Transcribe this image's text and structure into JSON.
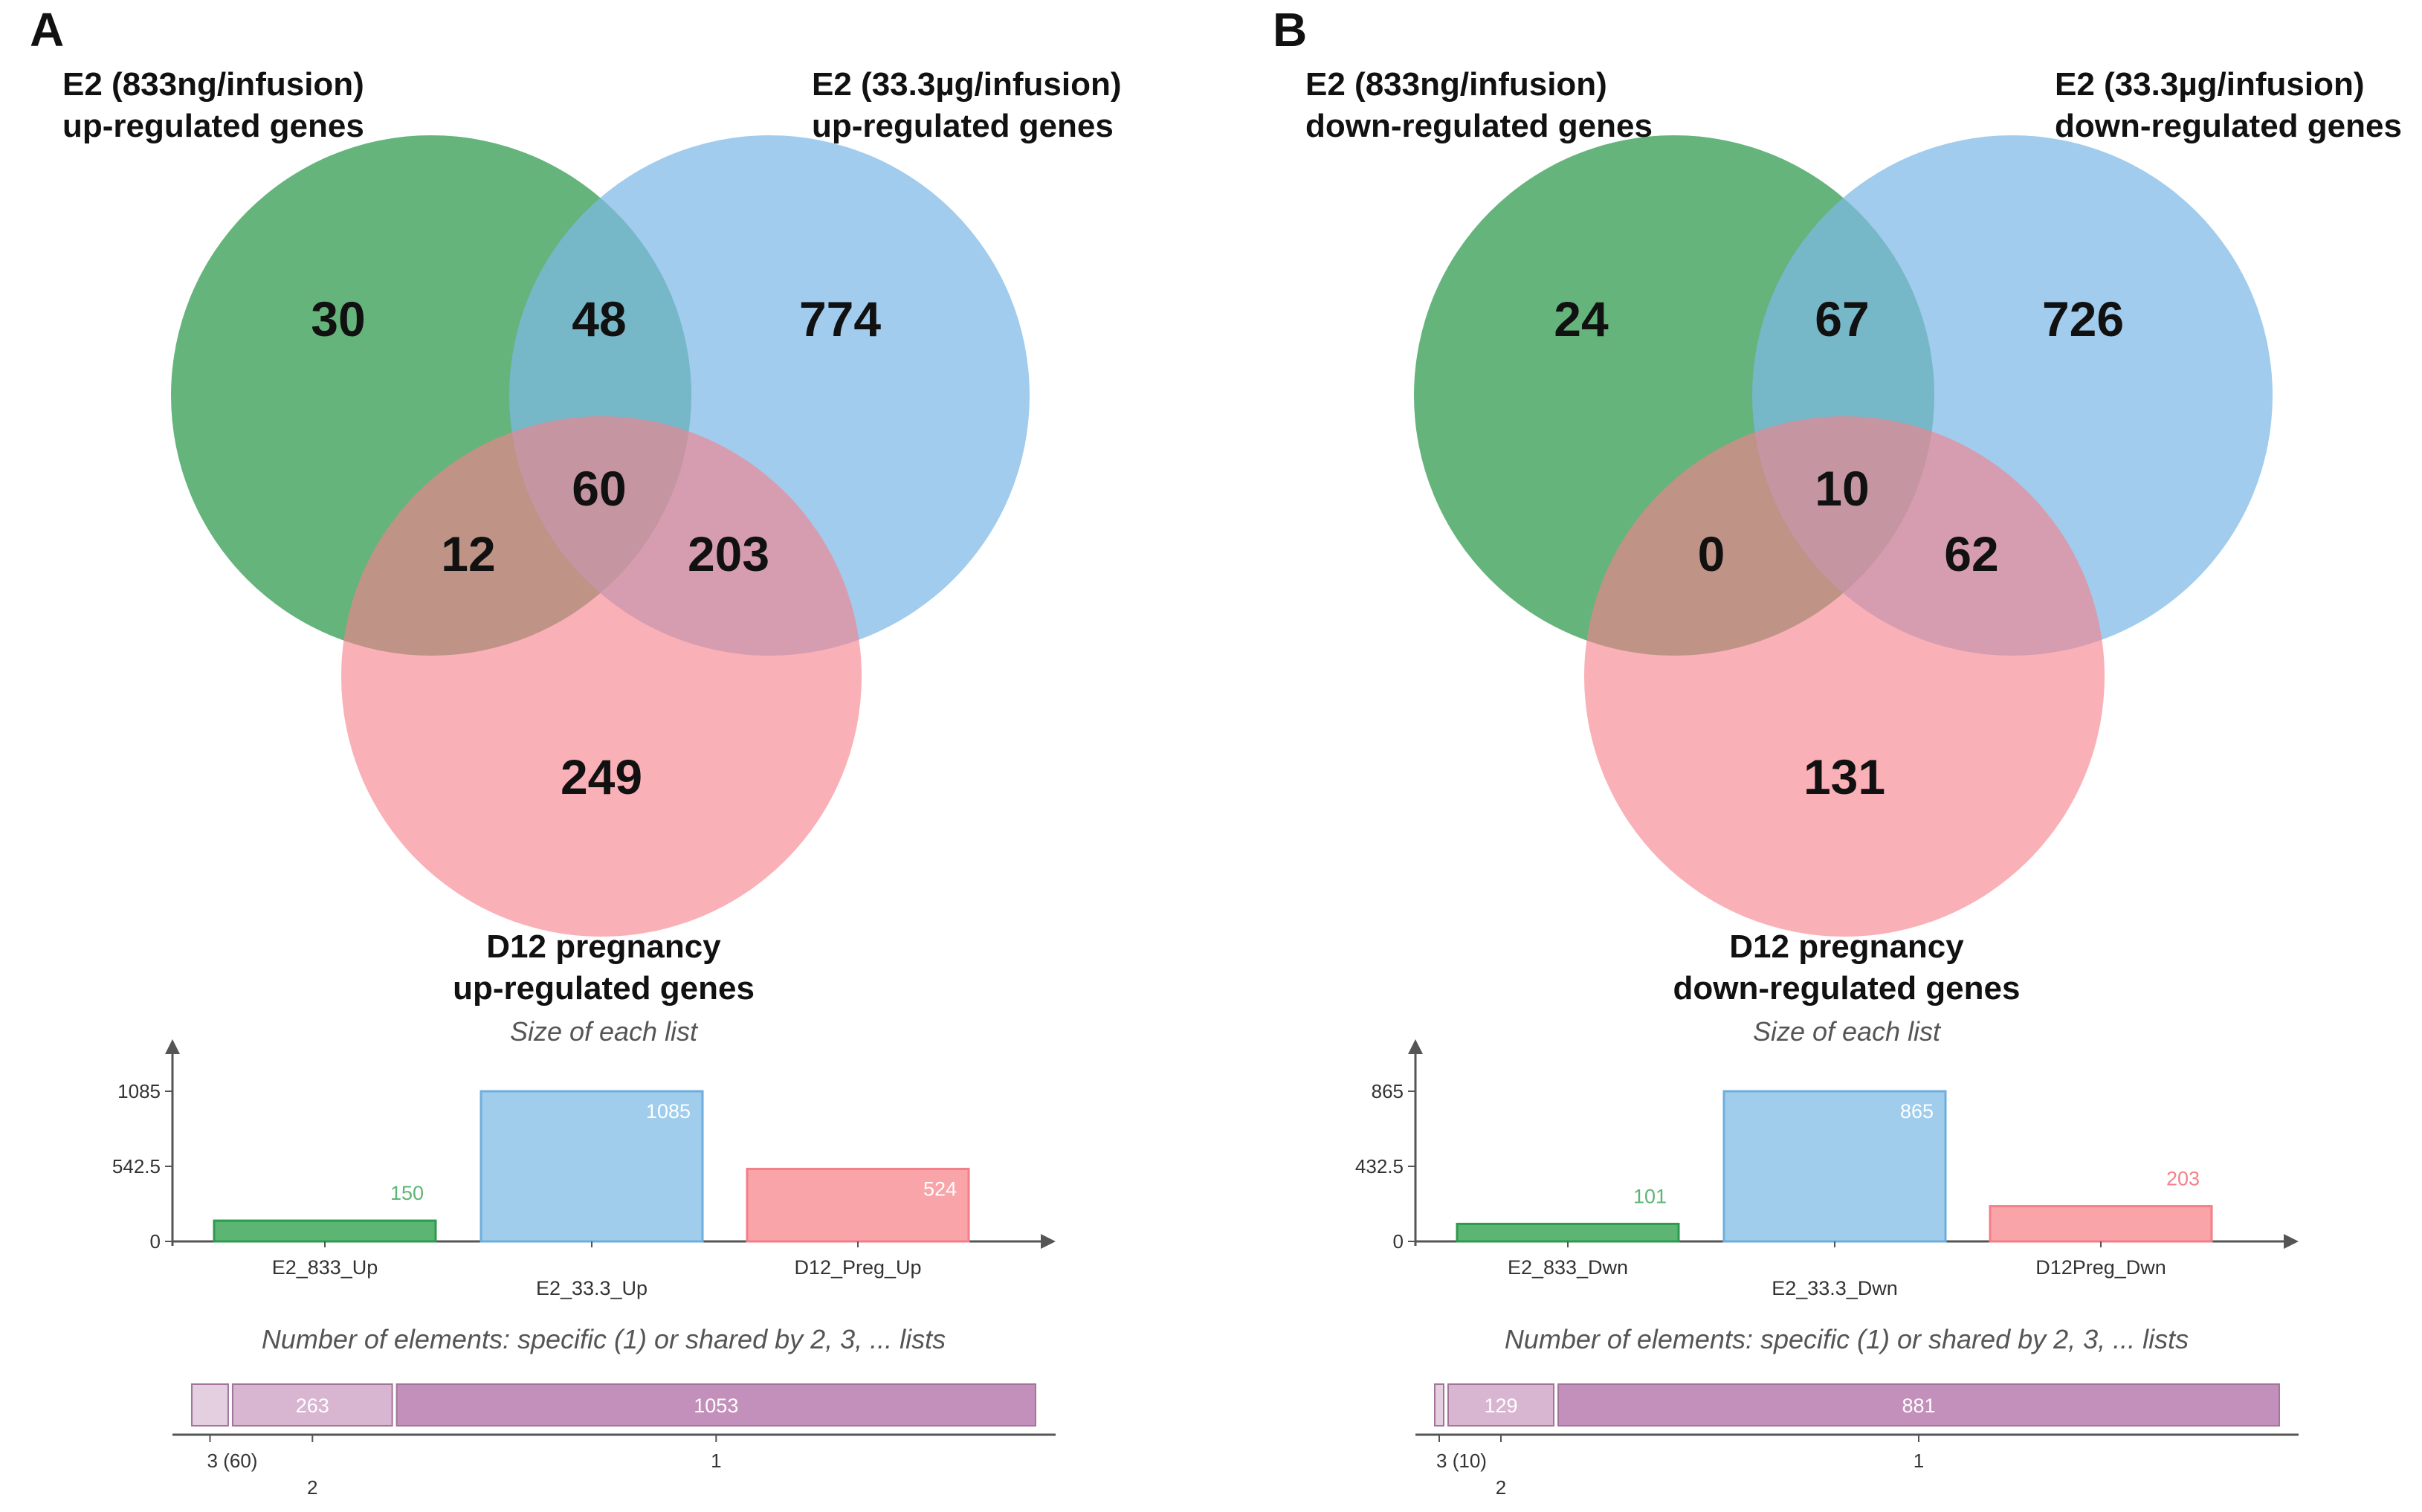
{
  "panels": [
    {
      "letter": "A",
      "set_labels": {
        "green": [
          "E2 (833ng/infusion)",
          "up-regulated genes"
        ],
        "blue": [
          "E2 (33.3µg/infusion)",
          "up-regulated genes"
        ],
        "pink": [
          "D12 pregnancy",
          "up-regulated genes"
        ]
      },
      "regions": {
        "green_only": "30",
        "green_blue": "48",
        "blue_only": "774",
        "all_three": "60",
        "green_pink": "12",
        "blue_pink": "203",
        "pink_only": "249"
      },
      "size_chart_title": "Size of each list",
      "shared_chart_title": "Number of elements: specific (1) or shared by 2, 3, ... lists",
      "shared_labels": {
        "three": "3 (60)",
        "two": "2",
        "one": "1"
      }
    },
    {
      "letter": "B",
      "set_labels": {
        "green": [
          "E2 (833ng/infusion)",
          "down-regulated genes"
        ],
        "blue": [
          "E2 (33.3µg/infusion)",
          "down-regulated genes"
        ],
        "pink": [
          "D12 pregnancy",
          "down-regulated genes"
        ]
      },
      "regions": {
        "green_only": "24",
        "green_blue": "67",
        "blue_only": "726",
        "all_three": "10",
        "green_pink": "0",
        "blue_pink": "62",
        "pink_only": "131"
      },
      "size_chart_title": "Size of each list",
      "shared_chart_title": "Number of elements: specific (1) or shared by 2, 3, ... lists",
      "shared_labels": {
        "three": "3 (10)",
        "two": "2",
        "one": "1"
      }
    }
  ],
  "colors": {
    "green": "#2E9A4E",
    "blue": "#7DB9E6",
    "pink": "#F7808A",
    "bar_green": "#5DB574",
    "bar_blue": "#9FCDEB",
    "bar_pink": "#F9A4A9",
    "seg_3": "#E3CFDF",
    "seg_2": "#D8B6D2",
    "seg_1": "#C290BA"
  },
  "chart_data": [
    {
      "type": "bar",
      "title": "Size of each list",
      "categories": [
        "E2_833_Up",
        "E2_33.3_Up",
        "D12_Preg_Up"
      ],
      "values": [
        150,
        1085,
        524
      ],
      "yticks": [
        "0",
        "542.5",
        "1085"
      ],
      "ylim": [
        0,
        1085
      ]
    },
    {
      "type": "bar",
      "title": "Number of elements: specific (1) or shared by 2, 3, ... lists",
      "categories": [
        "3",
        "2",
        "1"
      ],
      "values": [
        60,
        263,
        1053
      ]
    },
    {
      "type": "bar",
      "title": "Size of each list",
      "categories": [
        "E2_833_Dwn",
        "E2_33.3_Dwn",
        "D12Preg_Dwn"
      ],
      "values": [
        101,
        865,
        203
      ],
      "yticks": [
        "0",
        "432.5",
        "865"
      ],
      "ylim": [
        0,
        865
      ]
    },
    {
      "type": "bar",
      "title": "Number of elements: specific (1) or shared by 2, 3, ... lists",
      "categories": [
        "3",
        "2",
        "1"
      ],
      "values": [
        10,
        129,
        881
      ]
    }
  ]
}
